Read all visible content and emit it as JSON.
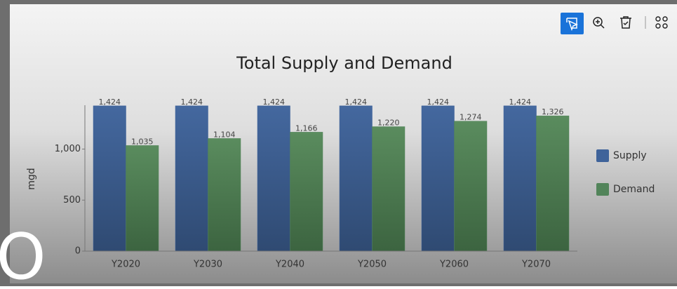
{
  "chart_data": {
    "type": "bar",
    "title": "Total Supply and Demand",
    "y_label": "mgd",
    "categories": [
      "Y2020",
      "Y2030",
      "Y2040",
      "Y2050",
      "Y2060",
      "Y2070"
    ],
    "series": [
      {
        "name": "Supply",
        "color": "#3f639a",
        "values": [
          1424,
          1424,
          1424,
          1424,
          1424,
          1424
        ],
        "value_labels": [
          "1,424",
          "1,424",
          "1,424",
          "1,424",
          "1,424",
          "1,424"
        ]
      },
      {
        "name": "Demand",
        "color": "#52845a",
        "values": [
          1035,
          1104,
          1166,
          1220,
          1274,
          1326
        ],
        "value_labels": [
          "1,035",
          "1,104",
          "1,166",
          "1,220",
          "1,274",
          "1,326"
        ]
      }
    ],
    "ylim": [
      0,
      1430
    ],
    "yticks": [
      0,
      500,
      {
        "value": 1000,
        "label": "1,000"
      }
    ],
    "legend": "right"
  },
  "overlay_text": "O"
}
